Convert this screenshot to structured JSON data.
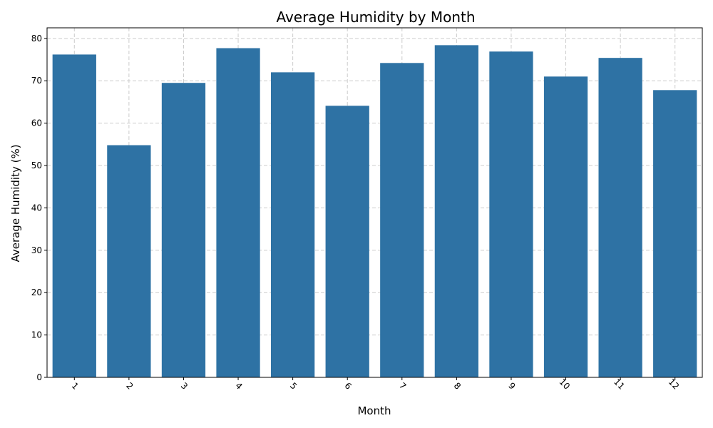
{
  "chart_data": {
    "type": "bar",
    "title": "Average Humidity by Month",
    "xlabel": "Month",
    "ylabel": "Average Humidity (%)",
    "categories": [
      "1",
      "2",
      "3",
      "4",
      "5",
      "6",
      "7",
      "8",
      "9",
      "10",
      "11",
      "12"
    ],
    "values": [
      76.2,
      54.8,
      69.5,
      77.7,
      72.0,
      64.1,
      74.2,
      78.4,
      76.9,
      71.0,
      75.4,
      67.8
    ],
    "ylim": [
      0,
      82.5
    ],
    "yticks": [
      0,
      10,
      20,
      30,
      40,
      50,
      60,
      70,
      80
    ],
    "grid": true,
    "bar_color": "#2e72a4",
    "xtick_rotation": 45
  }
}
